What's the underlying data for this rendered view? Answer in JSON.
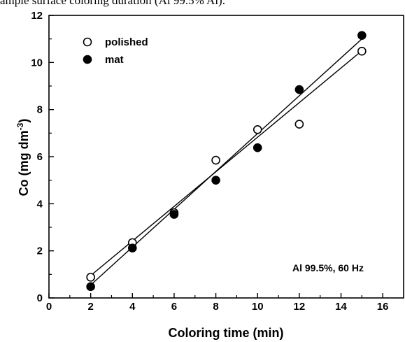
{
  "caption_fragment": "ample surface coloring duration (Al 99.5% Al).",
  "chart_data": {
    "type": "scatter",
    "title": "",
    "xlabel": "Coloring time (min)",
    "ylabel": "Co (mg dm",
    "ylabel_sup": "-3",
    "ylabel_close": ")",
    "xlim": [
      0,
      17
    ],
    "ylim": [
      0,
      12
    ],
    "xticks": [
      0,
      2,
      4,
      6,
      8,
      10,
      12,
      14,
      16
    ],
    "yticks": [
      0,
      2,
      4,
      6,
      8,
      10,
      12
    ],
    "xtick_labels": [
      "0",
      "2",
      "4",
      "6",
      "8",
      "10",
      "12",
      "14",
      "16"
    ],
    "ytick_labels": [
      "0",
      "2",
      "4",
      "6",
      "8",
      "10",
      "12"
    ],
    "grid": false,
    "legend_position": "top-left",
    "annotation": "Al 99.5%, 60 Hz",
    "series": [
      {
        "name": "polished",
        "marker": "open-circle",
        "x": [
          2,
          4,
          6,
          8,
          10,
          12,
          15
        ],
        "y": [
          0.88,
          2.35,
          3.62,
          5.85,
          7.15,
          7.38,
          10.48
        ],
        "fit": [
          [
            2,
            0.95
          ],
          [
            15,
            10.5
          ]
        ]
      },
      {
        "name": "mat",
        "marker": "filled-circle",
        "x": [
          2,
          4,
          6,
          8,
          10,
          12,
          15
        ],
        "y": [
          0.48,
          2.12,
          3.55,
          5.0,
          6.38,
          8.85,
          11.15
        ],
        "fit": [
          [
            2,
            0.55
          ],
          [
            15,
            11.0
          ]
        ]
      }
    ]
  }
}
